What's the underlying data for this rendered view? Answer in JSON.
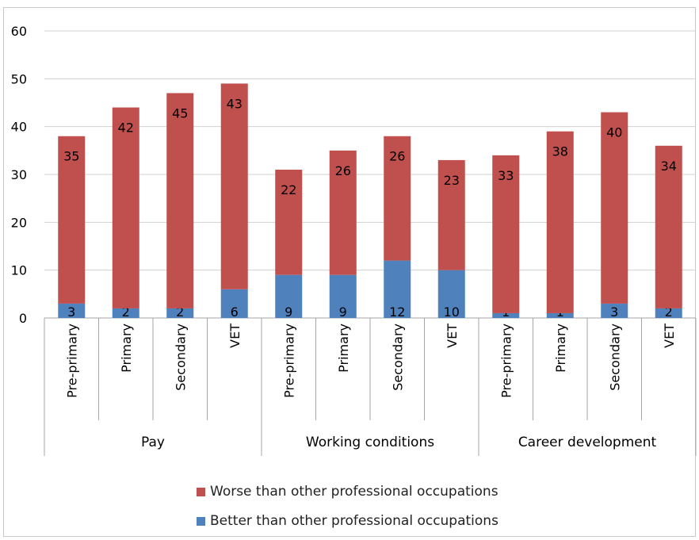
{
  "chart_data": {
    "type": "bar",
    "stacked": true,
    "groups": [
      {
        "label": "Pay",
        "categories": [
          "Pre-primary",
          "Primary",
          "Secondary",
          "VET"
        ]
      },
      {
        "label": "Working conditions",
        "categories": [
          "Pre-primary",
          "Primary",
          "Secondary",
          "VET"
        ]
      },
      {
        "label": "Career development",
        "categories": [
          "Pre-primary",
          "Primary",
          "Secondary",
          "VET"
        ]
      }
    ],
    "series": [
      {
        "name": "Better than other professional occupations",
        "color": "#4f81bd",
        "values": [
          3,
          2,
          2,
          6,
          9,
          9,
          12,
          10,
          1,
          1,
          3,
          2
        ]
      },
      {
        "name": "Worse than other professional occupations",
        "color": "#c0504d",
        "values": [
          35,
          42,
          45,
          43,
          22,
          26,
          26,
          23,
          33,
          38,
          40,
          34
        ]
      }
    ],
    "ylim": [
      0,
      60
    ],
    "yticks": [
      0,
      10,
      20,
      30,
      40,
      50,
      60
    ],
    "grid": true,
    "legend_position": "bottom"
  }
}
